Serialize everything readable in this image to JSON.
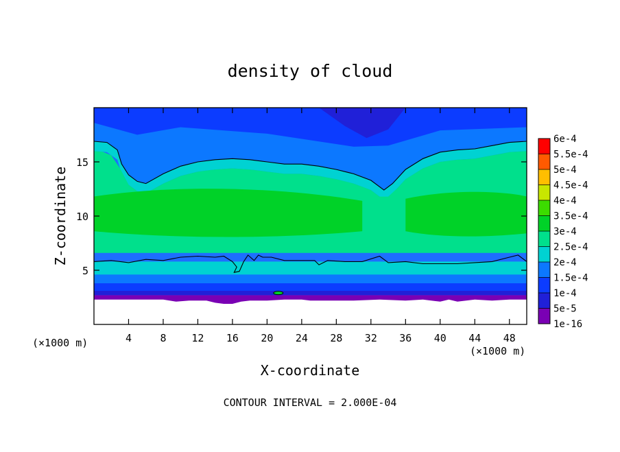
{
  "chart_data": {
    "type": "heatmap",
    "title": "density of cloud",
    "xlabel": "X-coordinate",
    "ylabel": "Z-coordinate",
    "x_unit": "(×1000 m)",
    "y_unit": "(×1000 m)",
    "footer": "CONTOUR INTERVAL = 2.000E-04",
    "xlim": [
      0,
      50
    ],
    "ylim": [
      0,
      20
    ],
    "x_ticks": [
      "4",
      "8",
      "12",
      "16",
      "20",
      "24",
      "28",
      "32",
      "36",
      "40",
      "44",
      "48"
    ],
    "y_ticks": [
      "5",
      "10",
      "15"
    ],
    "colorbar": {
      "labels": [
        "1e-16",
        "5e-5",
        "1e-4",
        "1.5e-4",
        "2e-4",
        "2.5e-4",
        "3e-4",
        "3.5e-4",
        "4e-4",
        "4.5e-4",
        "5e-4",
        "5.5e-4",
        "6e-4"
      ],
      "values": [
        1e-16,
        5e-05,
        0.0001,
        0.00015,
        0.0002,
        0.00025,
        0.0003,
        0.00035,
        0.0004,
        0.00045,
        0.0005,
        0.00055,
        0.0006
      ],
      "colors": [
        "#7a00b4",
        "#2020d8",
        "#0c3cff",
        "#0c78ff",
        "#00d2d2",
        "#00e08c",
        "#00d228",
        "#3cdc00",
        "#c8e600",
        "#ffbe00",
        "#ff5a00",
        "#ff0000",
        "#ff7878"
      ]
    },
    "contour_levels": [
      0.0002
    ],
    "upper_contour": [
      [
        0,
        16.9
      ],
      [
        1.5,
        16.8
      ],
      [
        2.7,
        16.1
      ],
      [
        3.2,
        14.8
      ],
      [
        4,
        13.8
      ],
      [
        5,
        13.2
      ],
      [
        6,
        13
      ],
      [
        8,
        13.9
      ],
      [
        10,
        14.6
      ],
      [
        12,
        15
      ],
      [
        14,
        15.2
      ],
      [
        16,
        15.3
      ],
      [
        18,
        15.2
      ],
      [
        20,
        15
      ],
      [
        22,
        14.8
      ],
      [
        24,
        14.8
      ],
      [
        26,
        14.6
      ],
      [
        28,
        14.3
      ],
      [
        30,
        13.9
      ],
      [
        32,
        13.3
      ],
      [
        33.5,
        12.4
      ],
      [
        34.5,
        13
      ],
      [
        36,
        14.3
      ],
      [
        38,
        15.3
      ],
      [
        40,
        15.9
      ],
      [
        42,
        16.1
      ],
      [
        44,
        16.2
      ],
      [
        46,
        16.5
      ],
      [
        48,
        16.8
      ],
      [
        50,
        16.9
      ]
    ],
    "lower_contour": [
      [
        0,
        5.8
      ],
      [
        2,
        5.9
      ],
      [
        4,
        5.7
      ],
      [
        6,
        6
      ],
      [
        8,
        5.9
      ],
      [
        10,
        6.2
      ],
      [
        12,
        6.3
      ],
      [
        14,
        6.2
      ],
      [
        15,
        6.3
      ],
      [
        16,
        5.8
      ],
      [
        16.5,
        5.3
      ],
      [
        16.2,
        4.8
      ],
      [
        16.8,
        4.9
      ],
      [
        17.3,
        5.8
      ],
      [
        17.8,
        6.4
      ],
      [
        18.5,
        5.9
      ],
      [
        19,
        6.4
      ],
      [
        19.5,
        6.2
      ],
      [
        20.5,
        6.2
      ],
      [
        22,
        5.9
      ],
      [
        24,
        5.9
      ],
      [
        25.5,
        5.9
      ],
      [
        26,
        5.5
      ],
      [
        27,
        5.9
      ],
      [
        29,
        5.8
      ],
      [
        31,
        5.8
      ],
      [
        33,
        6.3
      ],
      [
        34,
        5.7
      ],
      [
        36,
        5.8
      ],
      [
        38,
        5.6
      ],
      [
        40,
        5.6
      ],
      [
        42,
        5.6
      ],
      [
        44,
        5.7
      ],
      [
        46,
        5.8
      ],
      [
        48,
        6.2
      ],
      [
        49,
        6.4
      ],
      [
        50,
        5.8
      ]
    ],
    "ground_profile": [
      [
        0,
        2.3
      ],
      [
        2,
        2.3
      ],
      [
        4,
        2.3
      ],
      [
        8,
        2.3
      ],
      [
        9.5,
        2.1
      ],
      [
        11,
        2.2
      ],
      [
        13,
        2.2
      ],
      [
        14,
        2
      ],
      [
        15,
        1.9
      ],
      [
        16,
        1.9
      ],
      [
        17,
        2.1
      ],
      [
        18,
        2.2
      ],
      [
        20,
        2.2
      ],
      [
        22,
        2.3
      ],
      [
        24,
        2.3
      ],
      [
        25,
        2.2
      ],
      [
        27,
        2.2
      ],
      [
        30,
        2.2
      ],
      [
        33,
        2.3
      ],
      [
        36,
        2.2
      ],
      [
        38,
        2.3
      ],
      [
        40,
        2.1
      ],
      [
        41,
        2.3
      ],
      [
        42,
        2.1
      ],
      [
        44,
        2.3
      ],
      [
        46,
        2.2
      ],
      [
        48,
        2.3
      ],
      [
        50,
        2.3
      ]
    ]
  }
}
